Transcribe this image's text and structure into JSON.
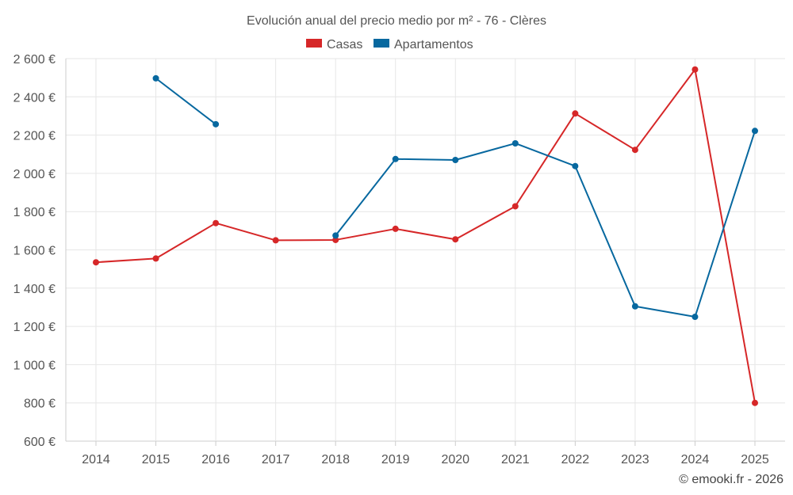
{
  "chart_data": {
    "type": "line",
    "title": "Evolución anual del precio medio por m² - 76 - Clères",
    "categories": [
      "2014",
      "2015",
      "2016",
      "2017",
      "2018",
      "2019",
      "2020",
      "2021",
      "2022",
      "2023",
      "2024",
      "2025"
    ],
    "series": [
      {
        "name": "Casas",
        "color": "#d62728",
        "values": [
          1535,
          1555,
          1740,
          1650,
          1652,
          1710,
          1655,
          1828,
          2313,
          2123,
          2543,
          800
        ]
      },
      {
        "name": "Apartamentos",
        "color": "#07689f",
        "values": [
          null,
          2497,
          2257,
          null,
          1675,
          2075,
          2070,
          2157,
          2038,
          1305,
          1250,
          2222
        ]
      }
    ],
    "ylim": [
      600,
      2600
    ],
    "yticks": [
      600,
      800,
      1000,
      1200,
      1400,
      1600,
      1800,
      2000,
      2200,
      2400,
      2600
    ],
    "ytick_labels": [
      "600 €",
      "800 €",
      "1 000 €",
      "1 200 €",
      "1 400 €",
      "1 600 €",
      "1 800 €",
      "2 000 €",
      "2 200 €",
      "2 400 €",
      "2 600 €"
    ],
    "xlabel": "",
    "ylabel": "",
    "legend_position": "top-center",
    "grid": true
  },
  "credit": "© emooki.fr - 2026"
}
